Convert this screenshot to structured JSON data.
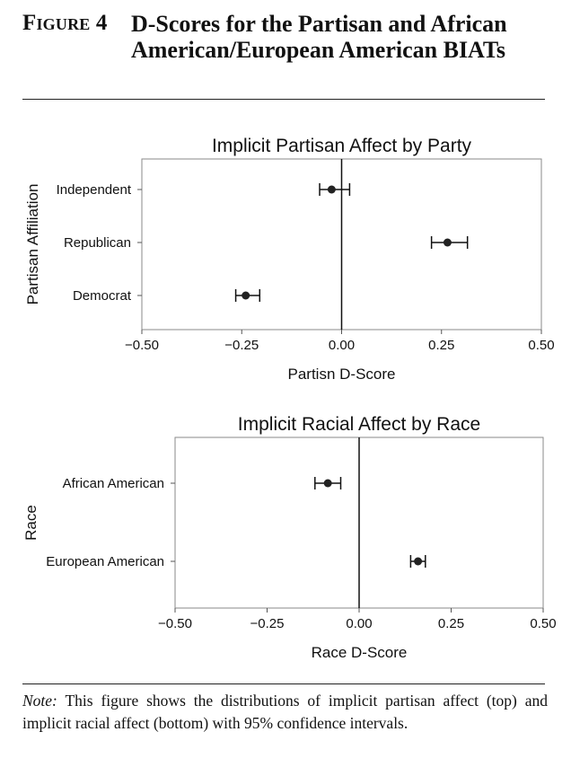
{
  "figure": {
    "label": "Figure 4",
    "title": "D-Scores for the Partisan and African American/European American BIATs",
    "note_label": "Note:",
    "note_text": "This figure shows the distributions of implicit partisan affect (top) and implicit racial affect (bottom) with 95% confidence intervals."
  },
  "chart_data": [
    {
      "type": "scatter",
      "title": "Implicit Partisan Affect by Party",
      "xlabel": "Partisn D-Score",
      "ylabel": "Partisan Affiliation",
      "categories": [
        "Independent",
        "Republican",
        "Democrat"
      ],
      "values": [
        -0.025,
        0.265,
        -0.24
      ],
      "ci_low": [
        -0.055,
        0.225,
        -0.265
      ],
      "ci_high": [
        0.02,
        0.315,
        -0.205
      ],
      "xlim": [
        -0.5,
        0.5
      ],
      "xticks": [
        "−0.50",
        "−0.25",
        "0.00",
        "0.25",
        "0.50"
      ],
      "reference_line": 0,
      "grid": false
    },
    {
      "type": "scatter",
      "title": "Implicit Racial Affect by Race",
      "xlabel": "Race D-Score",
      "ylabel": "Race",
      "categories": [
        "African American",
        "European American"
      ],
      "values": [
        -0.085,
        0.16
      ],
      "ci_low": [
        -0.12,
        0.14
      ],
      "ci_high": [
        -0.05,
        0.18
      ],
      "xlim": [
        -0.5,
        0.5
      ],
      "xticks": [
        "−0.50",
        "−0.25",
        "0.00",
        "0.25",
        "0.50"
      ],
      "reference_line": 0,
      "grid": false
    }
  ]
}
